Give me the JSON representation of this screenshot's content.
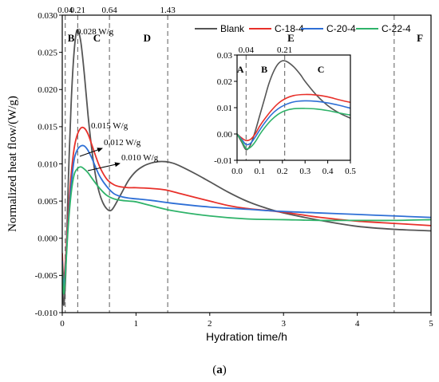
{
  "figure_label": "(a)",
  "colors": {
    "Blank": "#555555",
    "C-18-4": "#e8302a",
    "C-20-4": "#2e6fd6",
    "C-22-4": "#2fb36a"
  },
  "chart_data": [
    {
      "type": "line",
      "xlabel": "Hydration time/h",
      "ylabel": "Normalized heat flow/(W/g)",
      "xlim": [
        0,
        5
      ],
      "ylim": [
        -0.01,
        0.03
      ],
      "xticks": [
        "0",
        "1",
        "2",
        "3",
        "4",
        "5"
      ],
      "yticks": [
        "-0.010",
        "-0.005",
        "0.000",
        "0.005",
        "0.010",
        "0.015",
        "0.020",
        "0.025",
        "0.030"
      ],
      "legend_position": "top-right",
      "vlines": [
        0.04,
        0.21,
        0.64,
        1.43,
        4.5
      ],
      "vline_labels": [
        "0.04",
        "0.21",
        "0.64",
        "1.43"
      ],
      "zones": [
        {
          "label": "B",
          "x": 0.12
        },
        {
          "label": "C",
          "x": 0.47
        },
        {
          "label": "D",
          "x": 1.15
        },
        {
          "label": "E",
          "x": 3.1
        },
        {
          "label": "F",
          "x": 4.85
        }
      ],
      "peak_annotations": [
        {
          "text": "0.028 W/g",
          "x": 0.21,
          "y": 0.028
        },
        {
          "text": "0.015 W/g",
          "x": 0.32,
          "y": 0.015
        },
        {
          "text": "0.012 W/g",
          "x": 0.3,
          "y": 0.0125
        },
        {
          "text": "0.010 W/g",
          "x": 0.28,
          "y": 0.0096
        }
      ],
      "series": [
        {
          "name": "Blank",
          "x": [
            0,
            0.02,
            0.05,
            0.08,
            0.12,
            0.16,
            0.2,
            0.25,
            0.3,
            0.35,
            0.4,
            0.45,
            0.5,
            0.55,
            0.6,
            0.65,
            0.7,
            0.8,
            0.9,
            1.0,
            1.1,
            1.2,
            1.3,
            1.4,
            1.5,
            1.6,
            1.8,
            2.0,
            2.25,
            2.5,
            2.75,
            3.0,
            3.5,
            4.0,
            4.5,
            5.0
          ],
          "y": [
            -0.005,
            -0.009,
            -0.004,
            0.007,
            0.018,
            0.025,
            0.028,
            0.0265,
            0.022,
            0.0165,
            0.012,
            0.0085,
            0.0062,
            0.0048,
            0.004,
            0.0037,
            0.0042,
            0.006,
            0.0078,
            0.009,
            0.0097,
            0.0101,
            0.0103,
            0.0103,
            0.0101,
            0.0097,
            0.0087,
            0.0076,
            0.0062,
            0.005,
            0.0041,
            0.0034,
            0.0024,
            0.0016,
            0.0012,
            0.001
          ]
        },
        {
          "name": "C-18-4",
          "x": [
            0,
            0.02,
            0.05,
            0.08,
            0.12,
            0.16,
            0.2,
            0.25,
            0.3,
            0.35,
            0.4,
            0.5,
            0.6,
            0.7,
            0.8,
            0.9,
            1.0,
            1.2,
            1.4,
            1.6,
            1.8,
            2.0,
            2.25,
            2.5,
            3.0,
            3.5,
            4.0,
            4.5,
            5.0
          ],
          "y": [
            -0.002,
            -0.0055,
            -0.002,
            0.003,
            0.0085,
            0.012,
            0.0138,
            0.0148,
            0.0148,
            0.014,
            0.0126,
            0.0098,
            0.008,
            0.0072,
            0.0069,
            0.0068,
            0.0068,
            0.0067,
            0.0065,
            0.006,
            0.0055,
            0.005,
            0.0044,
            0.004,
            0.0035,
            0.0028,
            0.0023,
            0.002,
            0.0017
          ]
        },
        {
          "name": "C-20-4",
          "x": [
            0,
            0.02,
            0.05,
            0.08,
            0.12,
            0.16,
            0.2,
            0.25,
            0.3,
            0.35,
            0.4,
            0.5,
            0.6,
            0.7,
            0.8,
            0.9,
            1.0,
            1.2,
            1.5,
            2.0,
            2.5,
            3.0,
            3.5,
            4.0,
            4.5,
            5.0
          ],
          "y": [
            -0.003,
            -0.0065,
            -0.003,
            0.002,
            0.007,
            0.0105,
            0.0118,
            0.0124,
            0.0124,
            0.0118,
            0.0108,
            0.0085,
            0.007,
            0.006,
            0.0056,
            0.0054,
            0.0053,
            0.0051,
            0.0047,
            0.0042,
            0.0039,
            0.0036,
            0.0034,
            0.0032,
            0.003,
            0.0028
          ]
        },
        {
          "name": "C-22-4",
          "x": [
            0,
            0.02,
            0.05,
            0.08,
            0.12,
            0.16,
            0.2,
            0.25,
            0.3,
            0.35,
            0.4,
            0.5,
            0.6,
            0.7,
            0.8,
            0.9,
            1.0,
            1.2,
            1.5,
            2.0,
            2.5,
            3.0,
            3.5,
            4.0,
            4.5,
            5.0
          ],
          "y": [
            -0.0035,
            -0.0075,
            -0.0035,
            0.0015,
            0.006,
            0.0085,
            0.0093,
            0.0096,
            0.0093,
            0.0088,
            0.0081,
            0.0068,
            0.0058,
            0.0053,
            0.0051,
            0.005,
            0.0049,
            0.0044,
            0.0037,
            0.003,
            0.0026,
            0.0025,
            0.0024,
            0.0024,
            0.0024,
            0.0025
          ]
        }
      ]
    },
    {
      "type": "line",
      "xlabel": "",
      "ylabel": "",
      "xlim": [
        0,
        0.5
      ],
      "ylim": [
        -0.01,
        0.03
      ],
      "xticks": [
        "0.0",
        "0.1",
        "0.2",
        "0.3",
        "0.4",
        "0.5"
      ],
      "yticks": [
        "-0.01",
        "0.00",
        "0.01",
        "0.02",
        "0.03"
      ],
      "vlines": [
        0.04,
        0.21
      ],
      "vline_labels": [
        "0.04",
        "0.21"
      ],
      "zones": [
        {
          "label": "A",
          "x": 0.015
        },
        {
          "label": "B",
          "x": 0.12
        },
        {
          "label": "C",
          "x": 0.37
        }
      ],
      "series": [
        {
          "name": "Blank",
          "x": [
            0,
            0.02,
            0.04,
            0.06,
            0.08,
            0.1,
            0.12,
            0.14,
            0.16,
            0.18,
            0.2,
            0.22,
            0.25,
            0.28,
            0.3,
            0.35,
            0.4,
            0.45,
            0.5
          ],
          "y": [
            0.0,
            -0.003,
            -0.006,
            -0.004,
            0.001,
            0.007,
            0.013,
            0.019,
            0.0235,
            0.0265,
            0.0278,
            0.0275,
            0.0255,
            0.0225,
            0.02,
            0.0148,
            0.0108,
            0.008,
            0.006
          ]
        },
        {
          "name": "C-18-4",
          "x": [
            0,
            0.02,
            0.04,
            0.06,
            0.08,
            0.1,
            0.12,
            0.15,
            0.18,
            0.21,
            0.25,
            0.3,
            0.35,
            0.4,
            0.45,
            0.5
          ],
          "y": [
            0.0,
            -0.0015,
            -0.0025,
            -0.002,
            0.0,
            0.003,
            0.0055,
            0.0088,
            0.0115,
            0.0133,
            0.0146,
            0.015,
            0.0148,
            0.0141,
            0.013,
            0.012
          ]
        },
        {
          "name": "C-20-4",
          "x": [
            0,
            0.02,
            0.04,
            0.06,
            0.08,
            0.1,
            0.12,
            0.15,
            0.18,
            0.21,
            0.25,
            0.3,
            0.35,
            0.4,
            0.45,
            0.5
          ],
          "y": [
            0.0,
            -0.002,
            -0.004,
            -0.0035,
            -0.0012,
            0.0015,
            0.004,
            0.0072,
            0.0095,
            0.011,
            0.0122,
            0.0126,
            0.0124,
            0.0118,
            0.0109,
            0.0098
          ]
        },
        {
          "name": "C-22-4",
          "x": [
            0,
            0.02,
            0.04,
            0.06,
            0.08,
            0.1,
            0.12,
            0.15,
            0.18,
            0.21,
            0.25,
            0.3,
            0.35,
            0.4,
            0.45,
            0.5
          ],
          "y": [
            0.0,
            -0.0025,
            -0.0055,
            -0.005,
            -0.003,
            -0.0002,
            0.0022,
            0.0052,
            0.0074,
            0.0088,
            0.0096,
            0.0097,
            0.0095,
            0.0089,
            0.008,
            0.0072
          ]
        }
      ]
    }
  ]
}
